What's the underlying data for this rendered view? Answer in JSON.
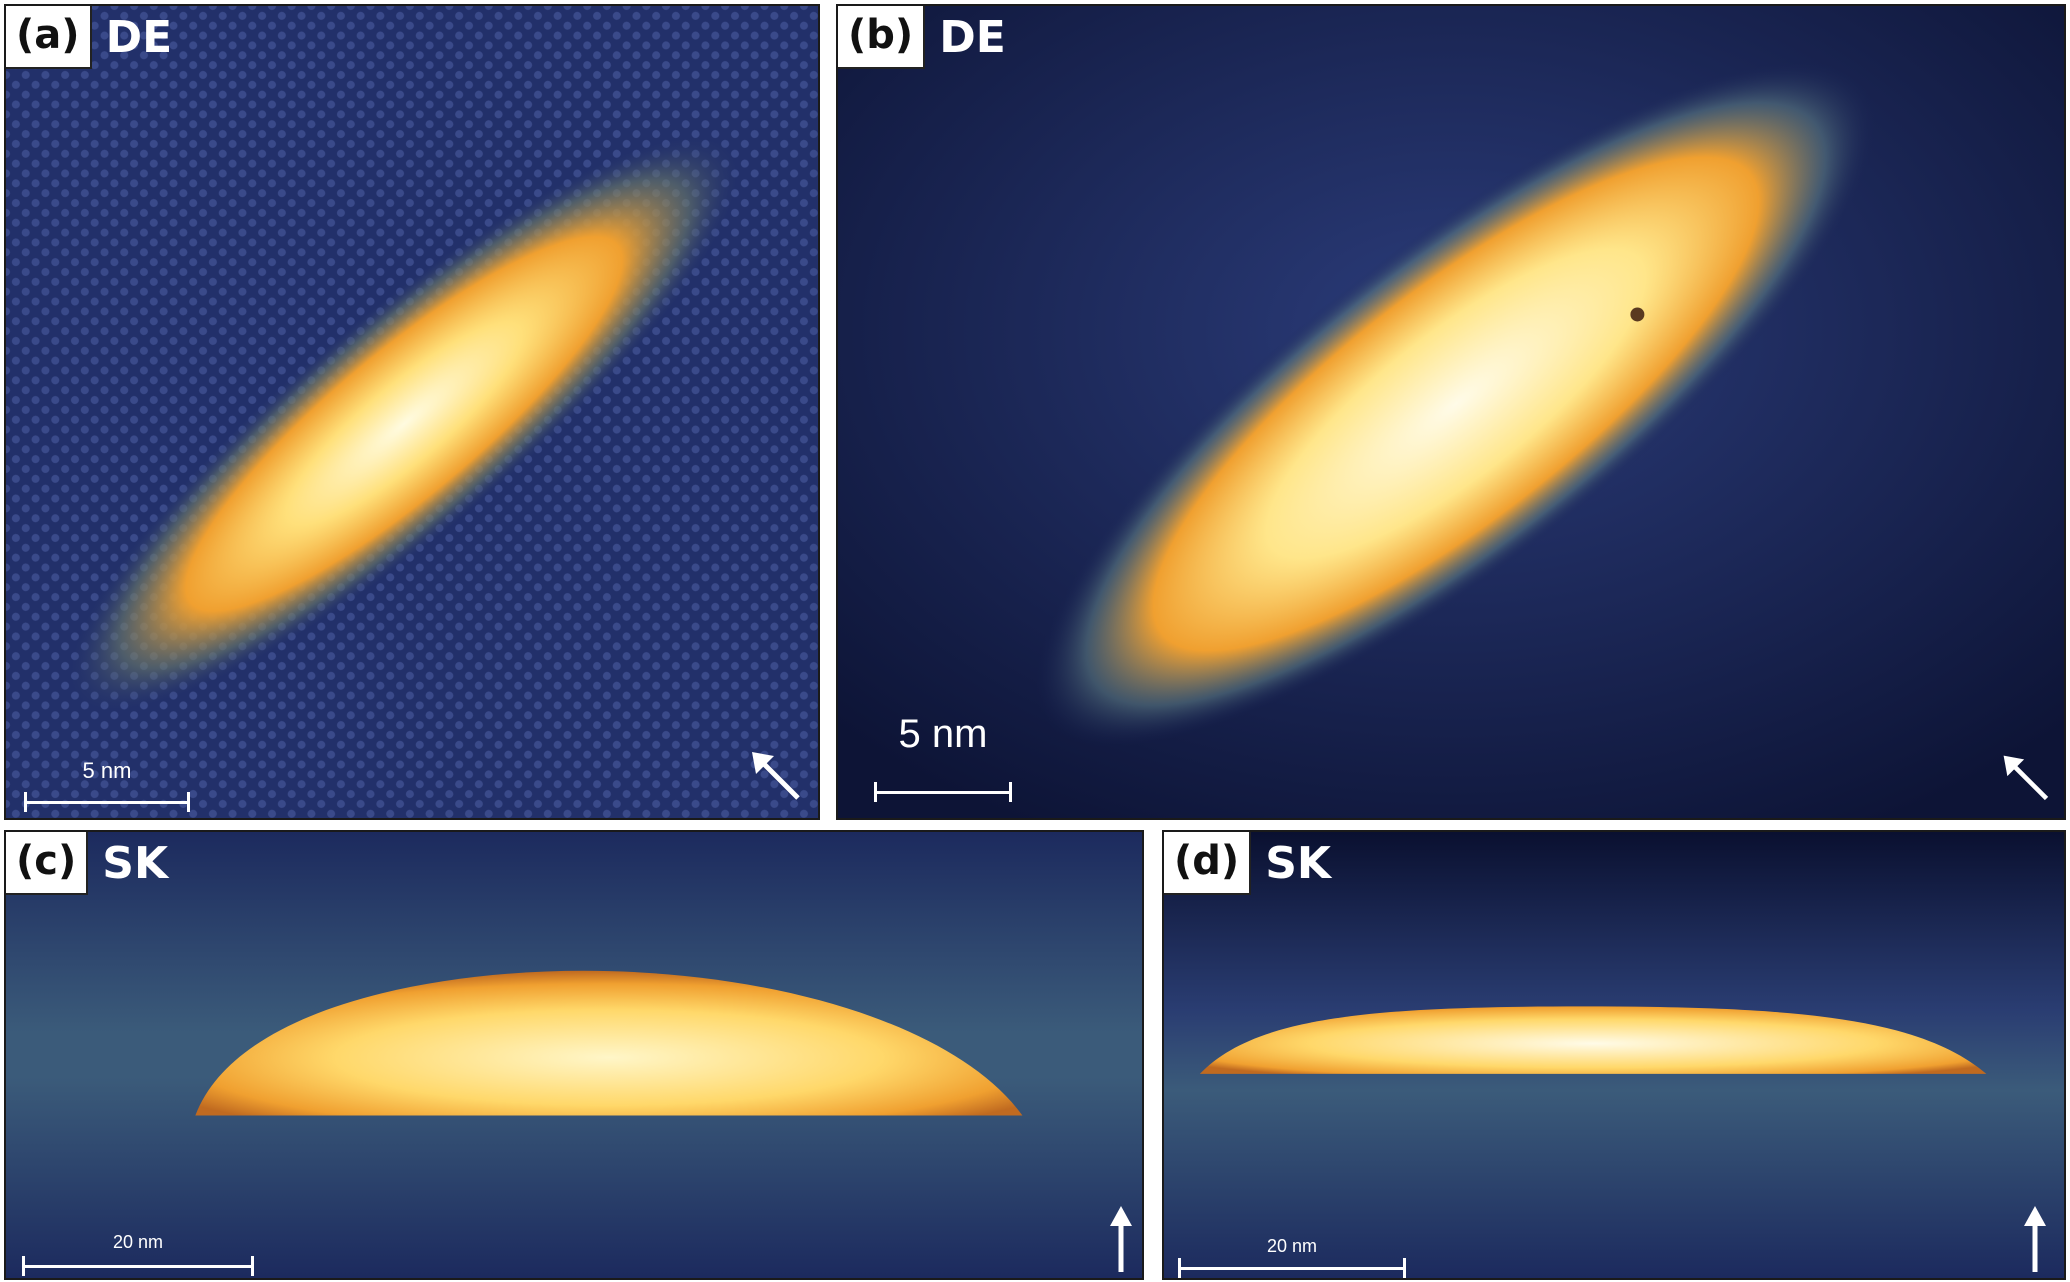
{
  "panels": [
    {
      "letter": "(a)",
      "mode": "DE",
      "scale_label": "5 nm",
      "arrow": "arrow-up-left-icon"
    },
    {
      "letter": "(b)",
      "mode": "DE",
      "scale_label": "5 nm",
      "arrow": "arrow-up-left-icon"
    },
    {
      "letter": "(c)",
      "mode": "SK",
      "scale_label": "20 nm",
      "arrow": "arrow-up-icon"
    },
    {
      "letter": "(d)",
      "mode": "SK",
      "scale_label": "20 nm",
      "arrow": "arrow-up-icon"
    }
  ],
  "colors": {
    "background": "#1c2a5e",
    "island_core": "#fff6c8",
    "island_edge": "#f0a030"
  }
}
